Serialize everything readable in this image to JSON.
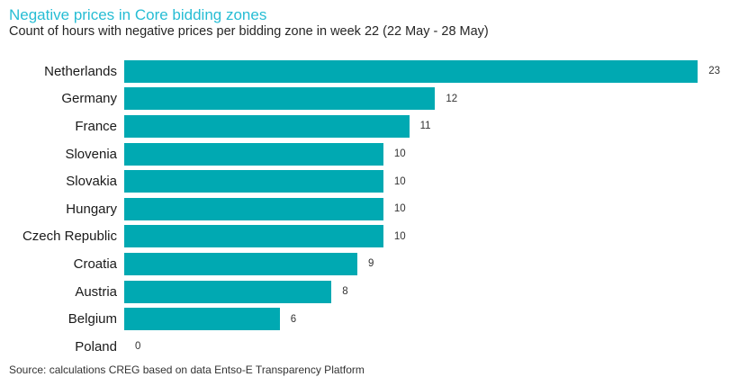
{
  "page": {
    "title": "Negative prices in Core bidding zones",
    "subtitle": "Count of hours with negative prices per bidding zone in week 22 (22 May - 28 May)",
    "source": "Source: calculations CREG based on data Entso-E Transparency Platform"
  },
  "colors": {
    "title": "#27bdd4",
    "bar": "#00a9b2",
    "text": "#262626"
  },
  "chart_data": {
    "type": "bar",
    "orientation": "horizontal",
    "title": "Negative prices in Core bidding zones",
    "subtitle": "Count of hours with negative prices per bidding zone in week 22 (22 May - 28 May)",
    "categories": [
      "Netherlands",
      "Germany",
      "France",
      "Slovenia",
      "Slovakia",
      "Hungary",
      "Czech Republic",
      "Croatia",
      "Austria",
      "Belgium",
      "Poland"
    ],
    "values": [
      23,
      12,
      11,
      10,
      10,
      10,
      10,
      9,
      8,
      6,
      0
    ],
    "xlabel": "",
    "ylabel": "",
    "xlim": [
      0,
      23
    ],
    "grid": false,
    "legend": false,
    "data_labels": true,
    "source": "Source: calculations CREG based on data Entso-E Transparency Platform"
  }
}
